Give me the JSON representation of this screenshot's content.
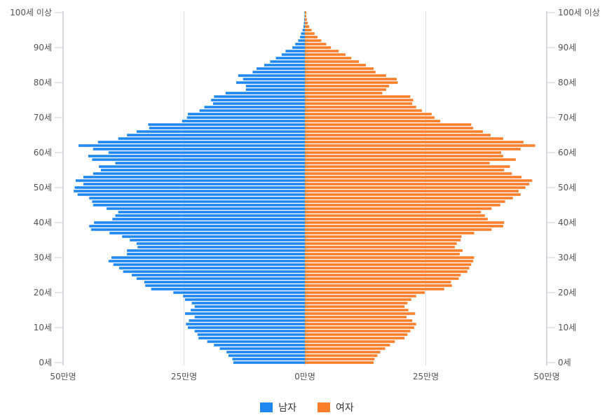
{
  "chart_data": {
    "type": "bar",
    "orientation": "horizontal-pyramid",
    "y_categories": [
      "0세",
      "1세",
      "2세",
      "3세",
      "4세",
      "5세",
      "6세",
      "7세",
      "8세",
      "9세",
      "10세",
      "11세",
      "12세",
      "13세",
      "14세",
      "15세",
      "16세",
      "17세",
      "18세",
      "19세",
      "20세",
      "21세",
      "22세",
      "23세",
      "24세",
      "25세",
      "26세",
      "27세",
      "28세",
      "29세",
      "30세",
      "31세",
      "32세",
      "33세",
      "34세",
      "35세",
      "36세",
      "37세",
      "38세",
      "39세",
      "40세",
      "41세",
      "42세",
      "43세",
      "44세",
      "45세",
      "46세",
      "47세",
      "48세",
      "49세",
      "50세",
      "51세",
      "52세",
      "53세",
      "54세",
      "55세",
      "56세",
      "57세",
      "58세",
      "59세",
      "60세",
      "61세",
      "62세",
      "63세",
      "64세",
      "65세",
      "66세",
      "67세",
      "68세",
      "69세",
      "70세",
      "71세",
      "72세",
      "73세",
      "74세",
      "75세",
      "76세",
      "77세",
      "78세",
      "79세",
      "80세",
      "81세",
      "82세",
      "83세",
      "84세",
      "85세",
      "86세",
      "87세",
      "88세",
      "89세",
      "90세",
      "91세",
      "92세",
      "93세",
      "94세",
      "95세",
      "96세",
      "97세",
      "98세",
      "99세",
      "100세 이상"
    ],
    "y_tick_labels": [
      "0세",
      "10세",
      "20세",
      "30세",
      "40세",
      "50세",
      "60세",
      "70세",
      "80세",
      "90세",
      "100세 이상"
    ],
    "x_tick_labels": [
      "50만명",
      "25만명",
      "0만명",
      "25만명",
      "50만명"
    ],
    "x_range_man": [
      -50,
      50
    ],
    "series": [
      {
        "name": "남자",
        "color": "#1f88f0",
        "values": [
          14.8,
          15.0,
          15.8,
          16.2,
          17.6,
          18.8,
          20.2,
          22.0,
          22.2,
          22.8,
          24.2,
          24.6,
          24.0,
          22.8,
          24.8,
          23.6,
          22.8,
          23.4,
          24.8,
          25.2,
          27.2,
          31.8,
          33.0,
          33.2,
          34.8,
          35.8,
          37.6,
          38.4,
          39.6,
          40.6,
          40.0,
          36.8,
          36.8,
          34.6,
          34.8,
          36.2,
          37.8,
          40.4,
          44.2,
          44.6,
          43.6,
          39.8,
          39.2,
          38.6,
          41.0,
          43.8,
          44.0,
          44.6,
          47.0,
          47.8,
          47.6,
          45.8,
          47.4,
          45.8,
          43.8,
          42.2,
          42.6,
          39.2,
          44.0,
          44.8,
          40.6,
          43.8,
          46.8,
          42.8,
          38.6,
          36.8,
          34.8,
          32.2,
          32.4,
          25.4,
          24.4,
          24.2,
          21.8,
          20.8,
          19.0,
          19.4,
          18.8,
          16.4,
          12.2,
          12.2,
          14.2,
          12.8,
          13.8,
          10.8,
          10.0,
          8.4,
          7.2,
          6.0,
          4.8,
          4.0,
          2.6,
          2.0,
          1.4,
          1.0,
          0.8,
          0.5,
          0.3,
          0.2,
          0.15,
          0.1,
          0.1
        ]
      },
      {
        "name": "여자",
        "color": "#fb7f2a",
        "values": [
          14.2,
          14.4,
          15.0,
          15.6,
          16.6,
          17.6,
          18.6,
          20.6,
          21.2,
          21.8,
          22.6,
          23.0,
          22.2,
          21.0,
          22.8,
          21.4,
          20.6,
          21.2,
          22.0,
          23.0,
          24.8,
          28.8,
          30.4,
          30.2,
          31.8,
          32.2,
          33.6,
          34.0,
          34.4,
          34.8,
          35.0,
          32.0,
          32.6,
          31.0,
          31.4,
          32.2,
          32.4,
          35.0,
          38.6,
          41.0,
          41.2,
          37.8,
          37.2,
          36.4,
          38.6,
          40.4,
          41.4,
          43.0,
          44.6,
          44.2,
          45.6,
          46.4,
          47.0,
          44.8,
          42.8,
          41.2,
          42.4,
          38.2,
          43.6,
          41.0,
          40.6,
          44.6,
          47.6,
          45.2,
          41.0,
          38.4,
          36.8,
          34.8,
          34.4,
          28.0,
          26.8,
          26.2,
          24.2,
          23.0,
          22.2,
          22.4,
          21.8,
          16.0,
          16.8,
          17.4,
          19.2,
          19.0,
          16.8,
          14.6,
          14.2,
          12.6,
          11.2,
          9.6,
          8.4,
          7.0,
          5.4,
          4.4,
          3.4,
          2.6,
          2.0,
          1.4,
          0.9,
          0.6,
          0.4,
          0.3,
          0.3
        ]
      }
    ],
    "grid": true,
    "legend_position": "bottom-center"
  }
}
